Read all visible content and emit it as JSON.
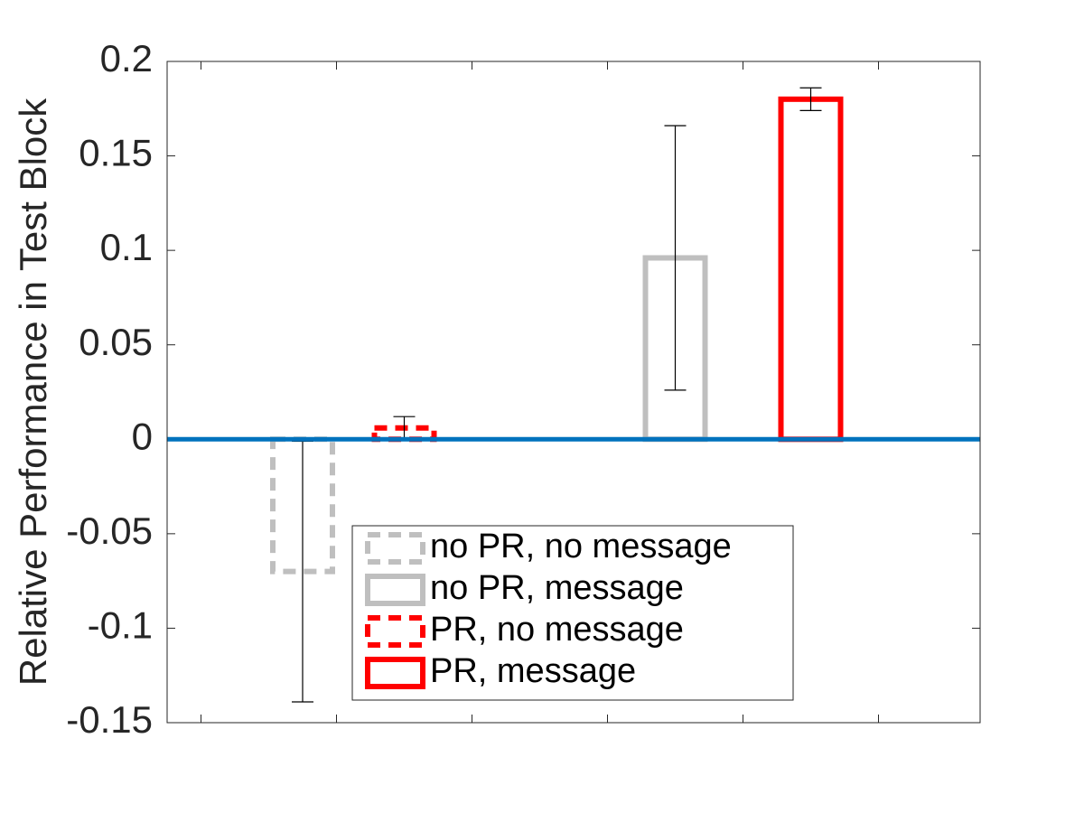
{
  "chart_data": {
    "type": "bar",
    "title": "",
    "xlabel": "",
    "ylabel": "Relative Performance in Test Block",
    "ylim": [
      -0.15,
      0.2
    ],
    "yticks": [
      -0.15,
      -0.1,
      -0.05,
      0,
      0.05,
      0.1,
      0.15,
      0.2
    ],
    "ytick_labels": [
      "-0.15",
      "-0.1",
      "-0.05",
      "0",
      "0.05",
      "0.1",
      "0.15",
      "0.2"
    ],
    "xlim": [
      0,
      6
    ],
    "xticks": [
      0.25,
      1.25,
      2.25,
      3.25,
      4.25,
      5.25
    ],
    "grid": false,
    "legend_position": "bottom-center",
    "baseline": {
      "value": 0,
      "color": "#0072BD"
    },
    "series": [
      {
        "name": "no PR, no message",
        "x": 1.0,
        "value": -0.07,
        "err_low": -0.139,
        "err_high": -0.001,
        "color": "#BFBFBF",
        "dashed": true
      },
      {
        "name": "no PR, message",
        "x": 3.75,
        "value": 0.096,
        "err_low": 0.026,
        "err_high": 0.166,
        "color": "#BFBFBF",
        "dashed": false
      },
      {
        "name": "PR, no message",
        "x": 1.75,
        "value": 0.006,
        "err_low": 0.0,
        "err_high": 0.012,
        "color": "#FF0000",
        "dashed": true
      },
      {
        "name": "PR, message",
        "x": 4.75,
        "value": 0.18,
        "err_low": 0.174,
        "err_high": 0.186,
        "color": "#FF0000",
        "dashed": false
      }
    ]
  }
}
